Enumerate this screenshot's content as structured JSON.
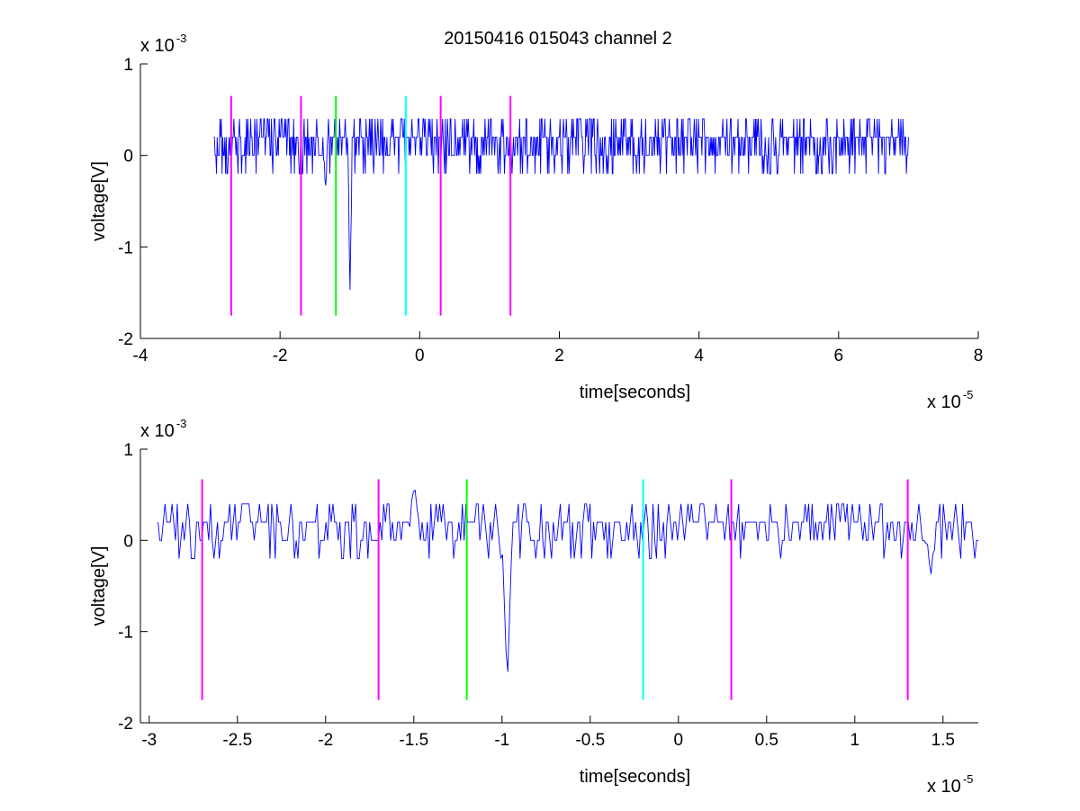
{
  "figure": {
    "title": "20150416 015043 channel 2",
    "colors": {
      "signal": "#0000ff",
      "marker_magenta": "#ff00ff",
      "marker_green": "#00ff00",
      "marker_cyan": "#00ffff",
      "axes": "#000000"
    }
  },
  "chart_data": [
    {
      "type": "line",
      "title": "20150416 015043 channel 2",
      "xlabel": "time[seconds]",
      "ylabel": "voltage[V]",
      "x_scale_label": "x 10",
      "x_scale_exp": "-5",
      "y_scale_label": "x 10",
      "y_scale_exp": "-3",
      "xlim": [
        -4e-05,
        8e-05
      ],
      "ylim": [
        -0.002,
        0.001
      ],
      "x_ticks": [
        -4e-05,
        -2e-05,
        0,
        2e-05,
        4e-05,
        6e-05,
        8e-05
      ],
      "x_tick_labels": [
        "-4",
        "-2",
        "0",
        "2",
        "4",
        "6",
        "8"
      ],
      "y_ticks": [
        -0.002,
        -0.001,
        0,
        0.001
      ],
      "y_tick_labels": [
        "-2",
        "-1",
        "0",
        "1"
      ],
      "grid": false,
      "signal": {
        "x_start": -2.95e-05,
        "x_end": 7e-05,
        "samples": 1000,
        "levels": [
          -0.0002,
          0,
          0.0002,
          0.0004
        ],
        "spikes": [
          {
            "x": -1e-05,
            "y": -0.0016
          },
          {
            "x": -1.35e-05,
            "y": -0.0004
          }
        ]
      },
      "markers": [
        {
          "x": -2.7e-05,
          "color": "magenta",
          "y_range": [
            -0.00175,
            0.00065
          ]
        },
        {
          "x": -1.7e-05,
          "color": "magenta",
          "y_range": [
            -0.00175,
            0.00065
          ]
        },
        {
          "x": -1.2e-05,
          "color": "green",
          "y_range": [
            -0.00175,
            0.00065
          ]
        },
        {
          "x": -2e-06,
          "color": "cyan",
          "y_range": [
            -0.00175,
            0.00065
          ]
        },
        {
          "x": 3e-06,
          "color": "magenta",
          "y_range": [
            -0.00175,
            0.00065
          ]
        },
        {
          "x": 1.3e-05,
          "color": "magenta",
          "y_range": [
            -0.00175,
            0.00065
          ]
        }
      ]
    },
    {
      "type": "line",
      "xlabel": "time[seconds]",
      "ylabel": "voltage[V]",
      "x_scale_label": "x 10",
      "x_scale_exp": "-5",
      "y_scale_label": "x 10",
      "y_scale_exp": "-3",
      "xlim": [
        -3.05e-05,
        1.7e-05
      ],
      "ylim": [
        -0.002,
        0.001
      ],
      "x_ticks": [
        -3e-05,
        -2.5e-05,
        -2e-05,
        -1.5e-05,
        -1e-05,
        -5e-06,
        0,
        5e-06,
        1e-05,
        1.5e-05
      ],
      "x_tick_labels": [
        "-3",
        "-2.5",
        "-2",
        "-1.5",
        "-1",
        "-0.5",
        "0",
        "0.5",
        "1",
        "1.5"
      ],
      "y_ticks": [
        -0.002,
        -0.001,
        0,
        0.001
      ],
      "y_tick_labels": [
        "-2",
        "-1",
        "0",
        "1"
      ],
      "grid": false,
      "signal": {
        "x_start": -2.95e-05,
        "x_end": 1.7e-05,
        "samples": 470,
        "levels": [
          -0.0002,
          0,
          0.0002,
          0.0004
        ],
        "spikes": [
          {
            "x": -9.7e-06,
            "y": -0.0016
          },
          {
            "x": -1.5e-05,
            "y": 0.0006
          },
          {
            "x": 1.43e-05,
            "y": -0.0004
          }
        ]
      },
      "markers": [
        {
          "x": -2.7e-05,
          "color": "magenta",
          "y_range": [
            -0.00175,
            0.00067
          ]
        },
        {
          "x": -1.7e-05,
          "color": "magenta",
          "y_range": [
            -0.00175,
            0.00067
          ]
        },
        {
          "x": -1.2e-05,
          "color": "green",
          "y_range": [
            -0.00175,
            0.00067
          ]
        },
        {
          "x": -2e-06,
          "color": "cyan",
          "y_range": [
            -0.00175,
            0.00067
          ]
        },
        {
          "x": 3e-06,
          "color": "magenta",
          "y_range": [
            -0.00175,
            0.00067
          ]
        },
        {
          "x": 1.3e-05,
          "color": "magenta",
          "y_range": [
            -0.00175,
            0.00067
          ]
        }
      ]
    }
  ]
}
